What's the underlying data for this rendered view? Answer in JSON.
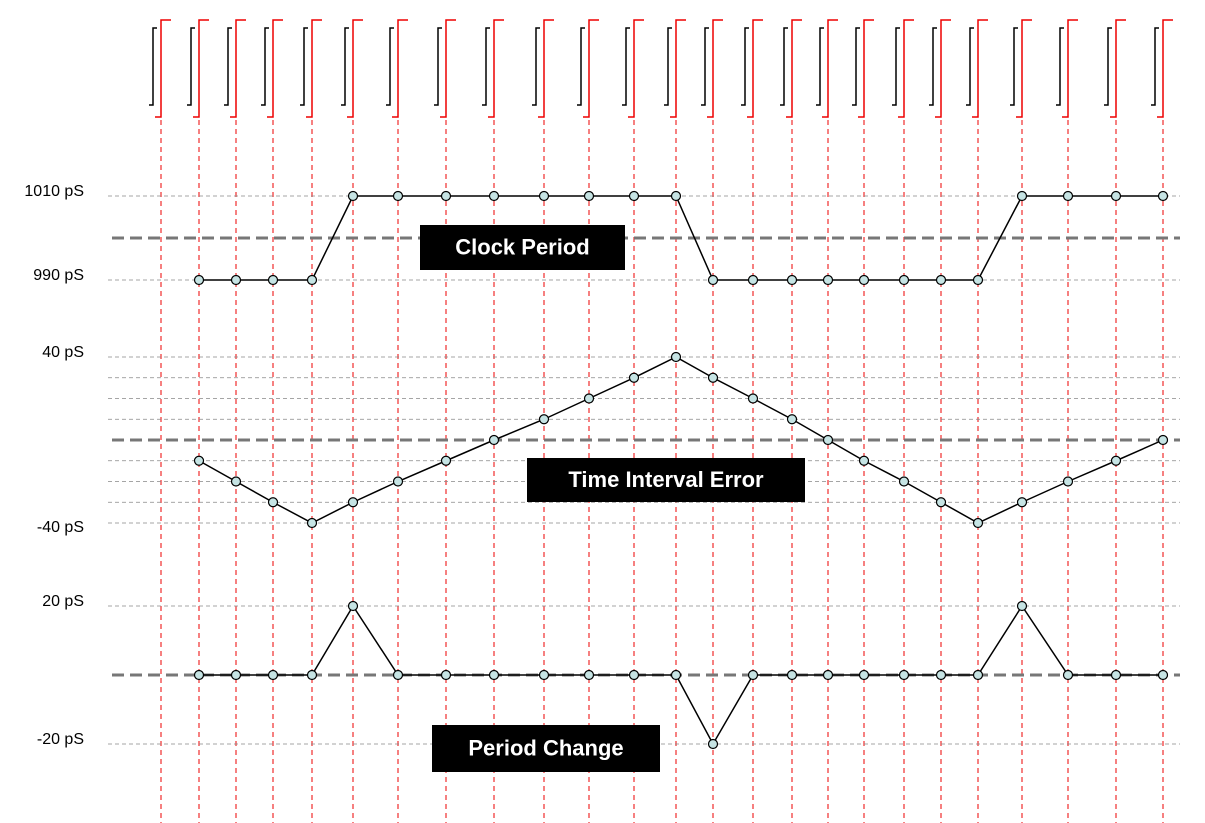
{
  "chart_data": [
    {
      "type": "line",
      "annotation": "Clock Period",
      "values": [
        990,
        990,
        990,
        990,
        1010,
        1010,
        1010,
        1010,
        1010,
        1010,
        1010,
        1010,
        990,
        990,
        990,
        990,
        990,
        990,
        990,
        990,
        1010,
        1010,
        1010,
        1010
      ],
      "ylim": [
        990,
        1010
      ],
      "yticks": [
        {
          "value": 990,
          "label": "990 pS"
        },
        {
          "value": 1010,
          "label": "1010 pS"
        }
      ],
      "grid": true,
      "minor_grid": false
    },
    {
      "type": "line",
      "annotation": "Time Interval Error",
      "values": [
        -10,
        -20,
        -30,
        -40,
        -30,
        -20,
        -10,
        0,
        10,
        20,
        30,
        40,
        30,
        20,
        10,
        0,
        -10,
        -20,
        -30,
        -40,
        -30,
        -20,
        -10,
        0
      ],
      "ylim": [
        -40,
        40
      ],
      "yticks": [
        {
          "value": -40,
          "label": "-40 pS"
        },
        {
          "value": 40,
          "label": "40 pS"
        }
      ],
      "grid": true,
      "minor_grid": true
    },
    {
      "type": "line",
      "annotation": "Period Change",
      "values": [
        0,
        0,
        0,
        0,
        20,
        0,
        0,
        0,
        0,
        0,
        0,
        0,
        -20,
        0,
        0,
        0,
        0,
        0,
        0,
        0,
        20,
        0,
        0,
        0
      ],
      "ylim": [
        -20,
        20
      ],
      "yticks": [
        {
          "value": -20,
          "label": "-20 pS"
        },
        {
          "value": 20,
          "label": "20 pS"
        }
      ],
      "grid": true,
      "minor_grid": false
    }
  ]
}
